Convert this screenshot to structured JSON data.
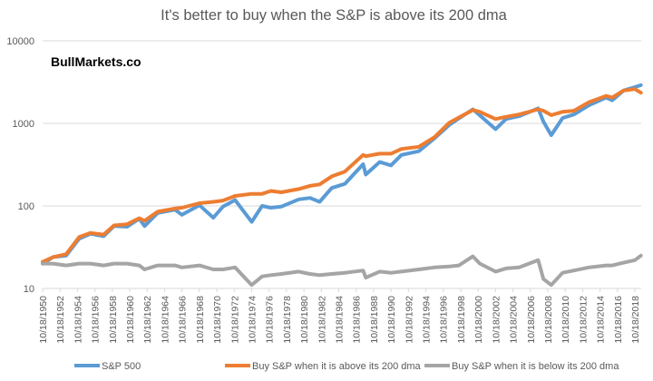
{
  "chart_data": {
    "type": "line",
    "title": "It's better to buy when the S&P is above its 200 dma",
    "watermark": "BullMarkets.co",
    "xlabel": "",
    "ylabel": "",
    "y_scale": "log",
    "ylim": [
      10,
      10000
    ],
    "y_ticks": [
      10,
      100,
      1000,
      10000
    ],
    "y_tick_labels": [
      "10",
      "100",
      "1000",
      "10000"
    ],
    "grid": "horizontal",
    "x_tick_labels": [
      "10/18/1950",
      "10/18/1952",
      "10/18/1954",
      "10/18/1956",
      "10/18/1958",
      "10/18/1960",
      "10/18/1962",
      "10/18/1964",
      "10/18/1966",
      "10/18/1968",
      "10/18/1970",
      "10/18/1972",
      "10/18/1974",
      "10/18/1976",
      "10/18/1978",
      "10/18/1980",
      "10/18/1982",
      "10/18/1984",
      "10/18/1986",
      "10/18/1988",
      "10/18/1990",
      "10/18/1992",
      "10/18/1994",
      "10/18/1996",
      "10/18/1998",
      "10/18/2000",
      "10/18/2002",
      "10/18/2004",
      "10/18/2006",
      "10/18/2008",
      "10/18/2010",
      "10/18/2012",
      "10/18/2014",
      "10/18/2016",
      "10/18/2018"
    ],
    "x_range": [
      1950.8,
      2019.5
    ],
    "legend_position": "bottom",
    "x": [
      1950.8,
      1952,
      1953.5,
      1955,
      1956.3,
      1957.8,
      1959,
      1960.5,
      1961.9,
      1962.5,
      1964,
      1966,
      1966.8,
      1968.8,
      1970.4,
      1971.5,
      1972.9,
      1974.8,
      1976,
      1977,
      1978.2,
      1980.2,
      1981.5,
      1982.6,
      1984,
      1985.5,
      1987.6,
      1987.9,
      1989.5,
      1990.8,
      1992,
      1994,
      1995.8,
      1997.5,
      1998.6,
      2000.2,
      2001,
      2002.8,
      2004,
      2005.5,
      2007.7,
      2008.3,
      2009.2,
      2010.5,
      2011.8,
      2013.5,
      2015.5,
      2016.2,
      2017.5,
      2018.8,
      2019.5
    ],
    "series": [
      {
        "name": "S&P 500",
        "color": "#5b9bd5",
        "values": [
          20,
          24,
          25,
          40,
          46,
          43,
          57,
          56,
          70,
          57,
          82,
          90,
          78,
          102,
          72,
          98,
          118,
          64,
          100,
          95,
          98,
          120,
          125,
          112,
          165,
          185,
          320,
          240,
          340,
          310,
          415,
          460,
          660,
          960,
          1150,
          1480,
          1250,
          850,
          1130,
          1220,
          1520,
          1050,
          720,
          1160,
          1280,
          1650,
          2050,
          1900,
          2500,
          2750,
          2900
        ]
      },
      {
        "name": "Buy S&P when it is above its 200 dma",
        "color": "#ed7d31",
        "values": [
          21,
          24,
          26,
          42,
          47,
          45,
          58,
          60,
          71,
          66,
          85,
          93,
          95,
          108,
          112,
          116,
          132,
          140,
          140,
          152,
          146,
          160,
          175,
          182,
          228,
          260,
          415,
          400,
          430,
          430,
          490,
          520,
          680,
          1020,
          1180,
          1450,
          1380,
          1130,
          1200,
          1280,
          1480,
          1420,
          1260,
          1380,
          1420,
          1800,
          2150,
          2050,
          2500,
          2600,
          2350
        ]
      },
      {
        "name": "Buy S&P when it is below its 200 dma",
        "color": "#a5a5a5",
        "values": [
          20,
          20,
          19,
          20,
          20,
          19,
          20,
          20,
          19,
          17,
          19,
          19,
          18,
          19,
          17,
          17,
          18,
          11,
          14,
          14.5,
          15,
          16,
          15,
          14.5,
          15,
          15.5,
          16.5,
          13.5,
          16,
          15.5,
          16,
          17,
          18,
          18.5,
          19,
          24.5,
          20,
          16,
          17.5,
          18,
          22,
          13,
          11,
          15.5,
          16.5,
          18,
          19,
          19,
          20.5,
          22,
          25
        ]
      }
    ]
  }
}
